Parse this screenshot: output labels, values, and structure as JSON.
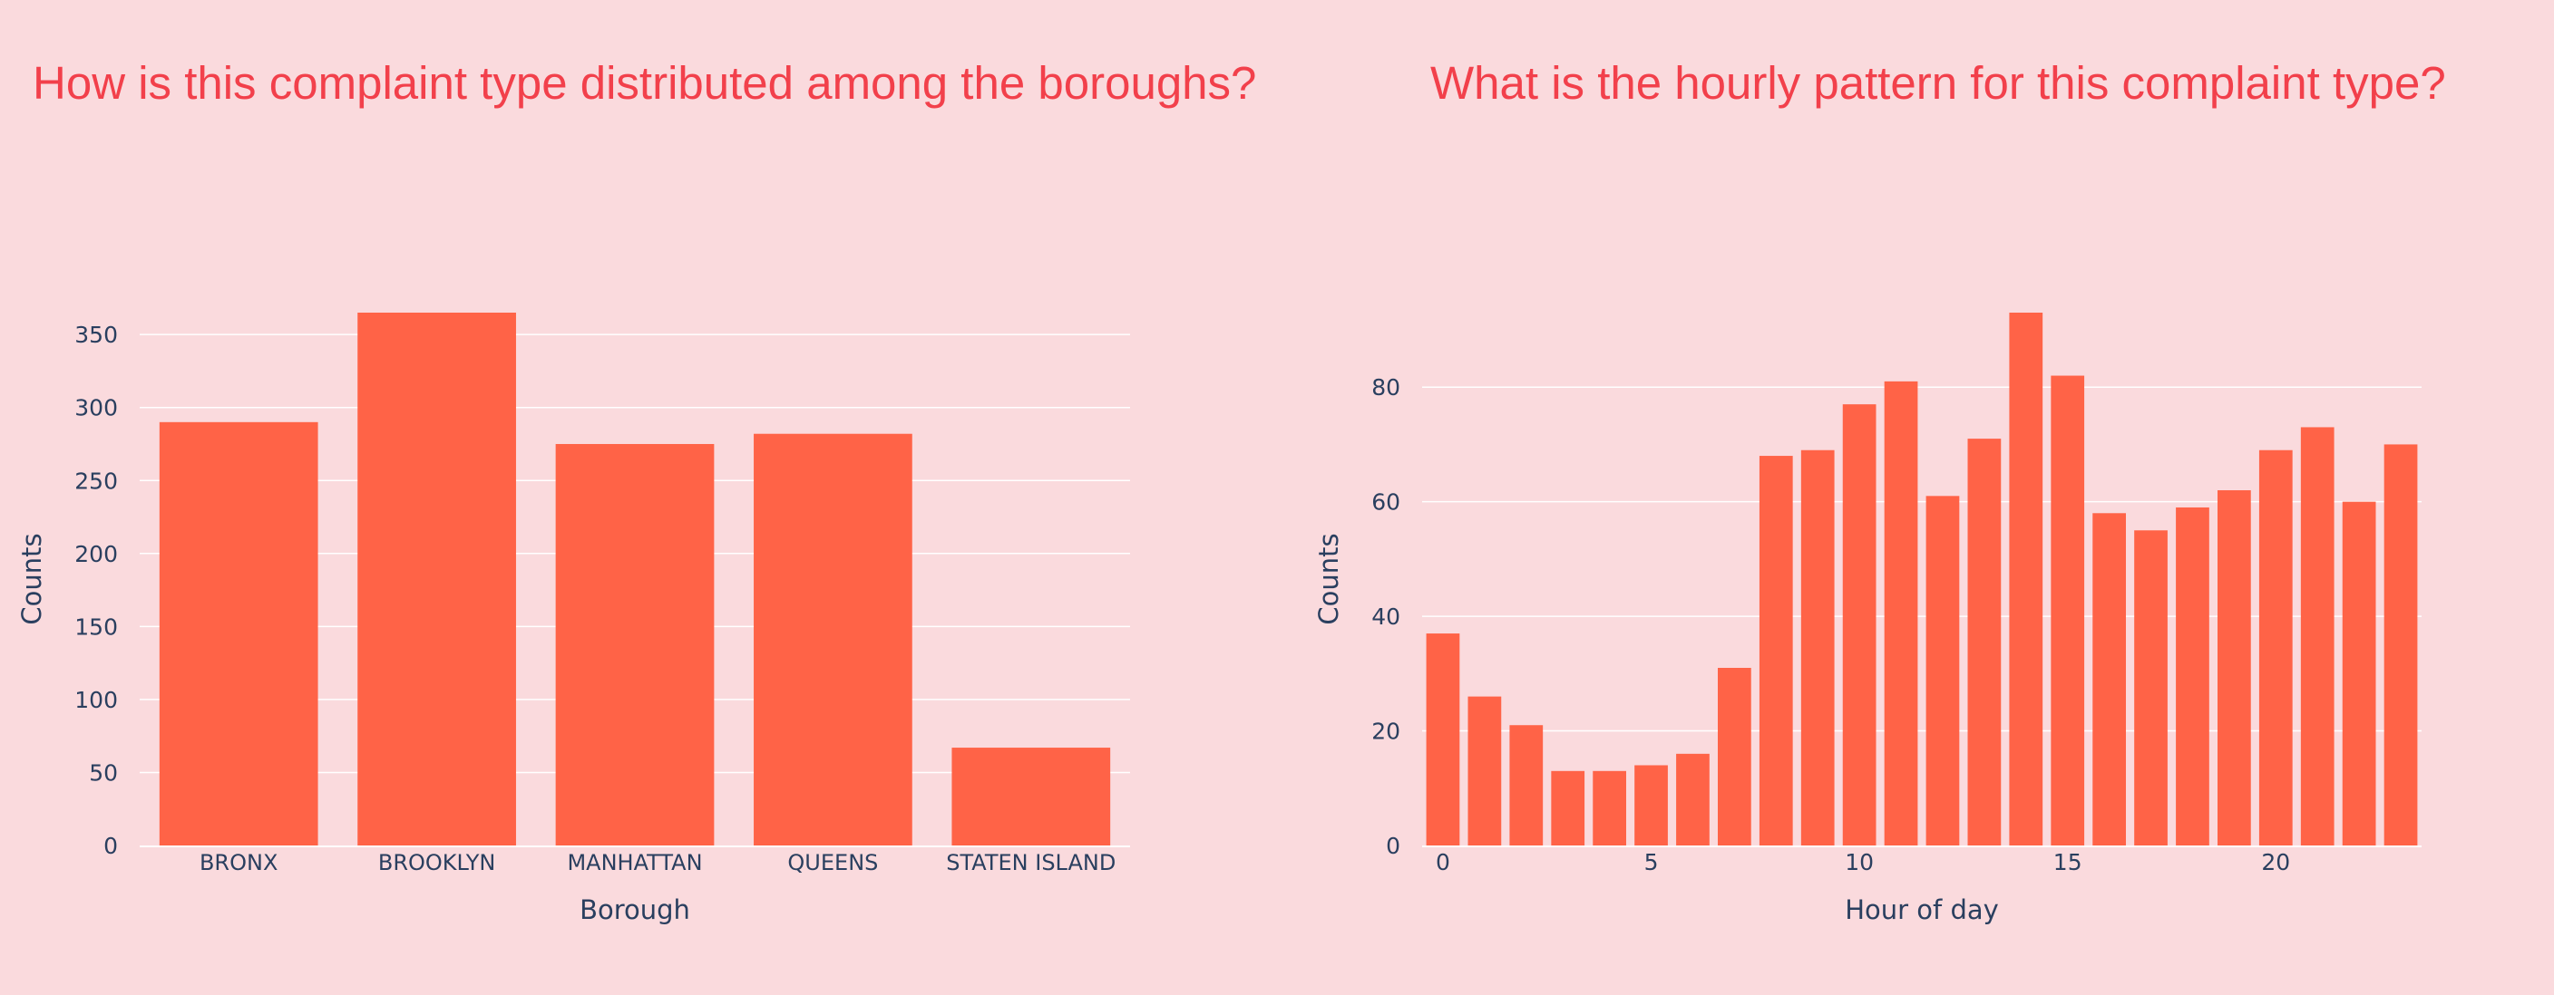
{
  "colors": {
    "background": "#fadadd",
    "title": "#f2404b",
    "bar": "#ff6347",
    "grid": "#ffffff",
    "axis_text": "#2a3f5f"
  },
  "chart_data": [
    {
      "type": "bar",
      "title": "How is this complaint type distributed among the boroughs?",
      "xlabel": "Borough",
      "ylabel": "Counts",
      "categories": [
        "BRONX",
        "BROOKLYN",
        "MANHATTAN",
        "QUEENS",
        "STATEN ISLAND"
      ],
      "values": [
        290,
        365,
        275,
        282,
        67
      ],
      "ylim": [
        0,
        365
      ],
      "yticks": [
        0,
        50,
        100,
        150,
        200,
        250,
        300,
        350
      ],
      "grid": true
    },
    {
      "type": "bar",
      "title": "What is the hourly pattern for this complaint type?",
      "xlabel": "Hour of day",
      "ylabel": "Counts",
      "x": [
        0,
        1,
        2,
        3,
        4,
        5,
        6,
        7,
        8,
        9,
        10,
        11,
        12,
        13,
        14,
        15,
        16,
        17,
        18,
        19,
        20,
        21,
        22,
        23
      ],
      "values": [
        37,
        26,
        21,
        13,
        13,
        14,
        16,
        31,
        68,
        69,
        77,
        81,
        61,
        71,
        93,
        82,
        58,
        55,
        59,
        62,
        69,
        73,
        60,
        70
      ],
      "ylim": [
        0,
        93
      ],
      "yticks": [
        0,
        20,
        40,
        60,
        80
      ],
      "xticks": [
        0,
        5,
        10,
        15,
        20
      ],
      "grid": true
    }
  ]
}
